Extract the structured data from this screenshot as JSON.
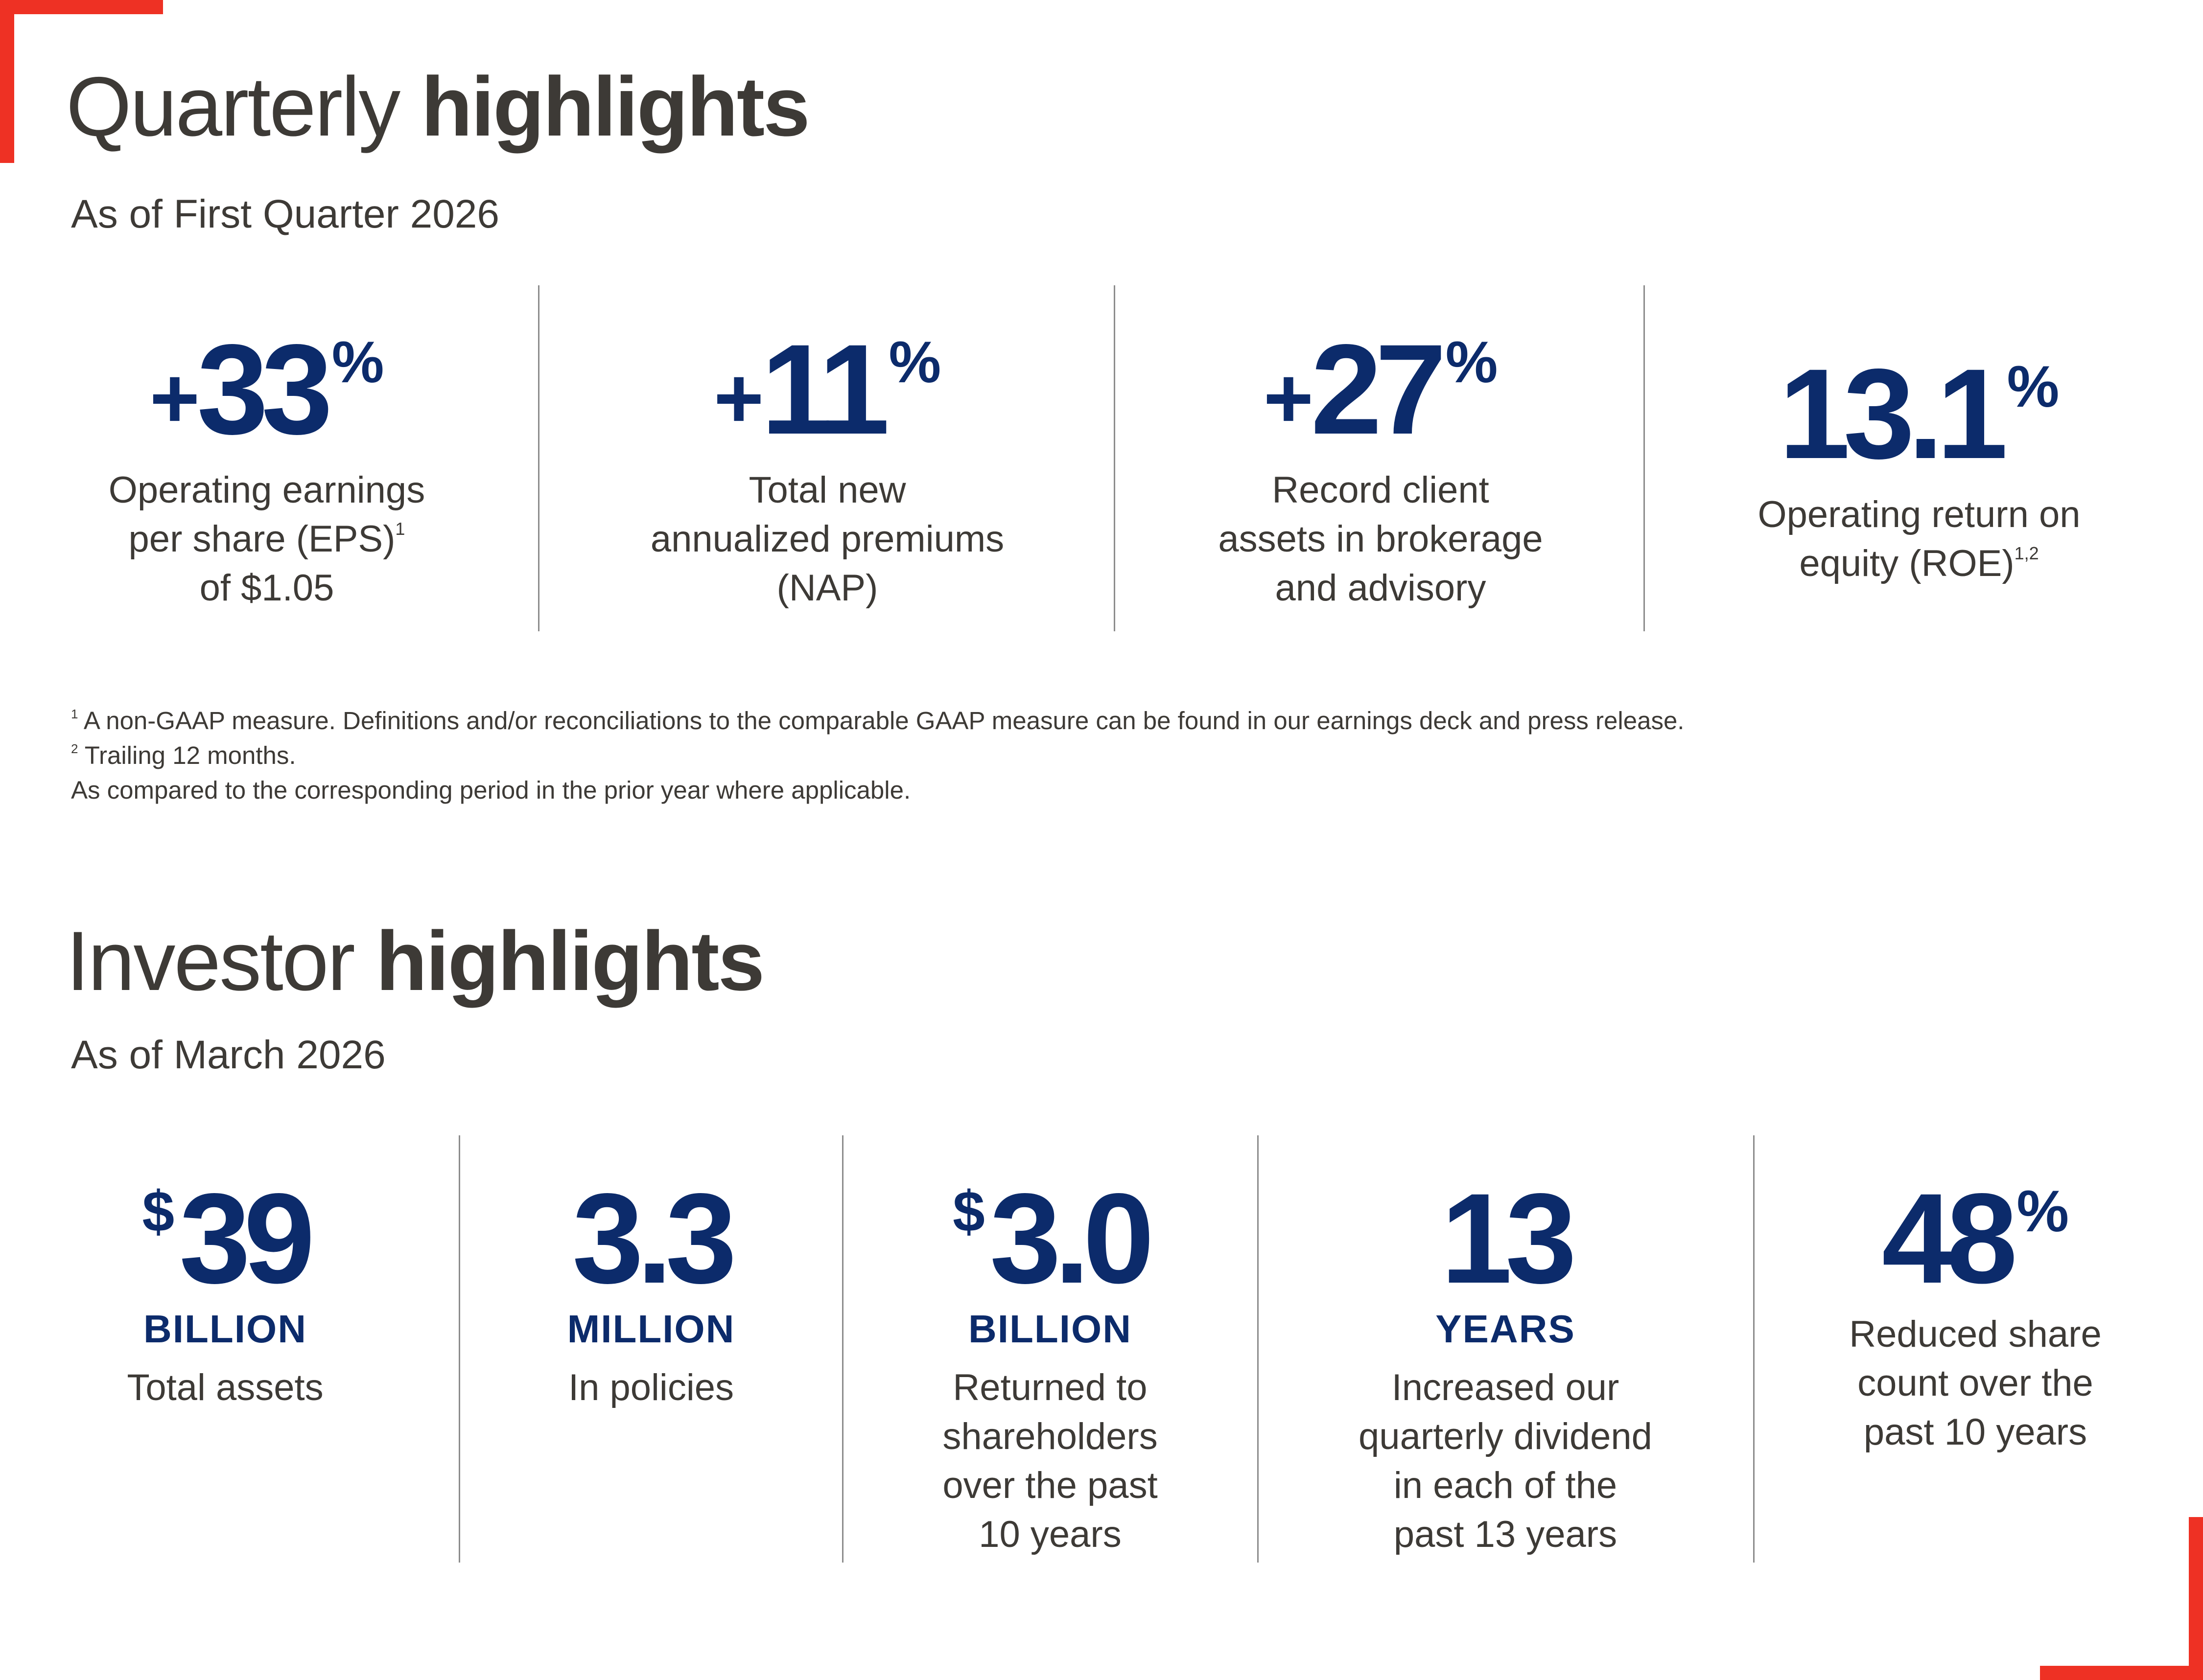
{
  "quarterly": {
    "title_light": "Quarterly",
    "title_bold": "highlights",
    "subtitle": "As of First Quarter 2026",
    "stats": [
      {
        "prefix": "+",
        "value": "33",
        "suffix": "%",
        "desc_lines": [
          "Operating earnings",
          "per share (EPS)",
          "of $1.05"
        ],
        "desc_sup": "1"
      },
      {
        "prefix": "+",
        "value": "11",
        "suffix": "%",
        "desc_lines": [
          "Total new",
          "annualized premiums",
          "(NAP)"
        ]
      },
      {
        "prefix": "+",
        "value": "27",
        "suffix": "%",
        "desc_lines": [
          "Record client",
          "assets in brokerage",
          "and advisory"
        ]
      },
      {
        "prefix": "",
        "value": "13.1",
        "suffix": "%",
        "desc_lines": [
          "Operating return on",
          "equity (ROE)"
        ],
        "desc_sup": "1,2"
      }
    ]
  },
  "footnotes": {
    "note1_marker": "1",
    "note1": "A non-GAAP measure. Definitions and/or reconciliations to the comparable GAAP measure can be found in our earnings deck and press release.",
    "note2_marker": "2",
    "note2": "Trailing 12 months.",
    "note3": "As compared to the corresponding period in the prior year where applicable."
  },
  "investor": {
    "title_light": "Investor",
    "title_bold": "highlights",
    "subtitle": "As of March 2026",
    "stats": [
      {
        "currency": "$",
        "value": "39",
        "unit": "BILLION",
        "desc_lines": [
          "Total assets"
        ]
      },
      {
        "currency": "",
        "value": "3.3",
        "unit": "MILLION",
        "desc_lines": [
          "In policies"
        ]
      },
      {
        "currency": "$",
        "value": "3.0",
        "unit": "BILLION",
        "desc_lines": [
          "Returned to",
          "shareholders",
          "over the past",
          "10 years"
        ]
      },
      {
        "currency": "",
        "value": "13",
        "unit": "YEARS",
        "desc_lines": [
          "Increased our",
          "quarterly dividend",
          "in each of the",
          "past 13 years"
        ]
      },
      {
        "currency": "",
        "value": "48",
        "suffix": "%",
        "unit": "",
        "desc_lines": [
          "Reduced share",
          "count over the",
          "past 10 years"
        ]
      }
    ]
  },
  "colors": {
    "accent_red": "#ee3124",
    "navy": "#0c2b6b",
    "text_dark": "#3d3a36",
    "divider_gray": "#8c8c8c"
  }
}
